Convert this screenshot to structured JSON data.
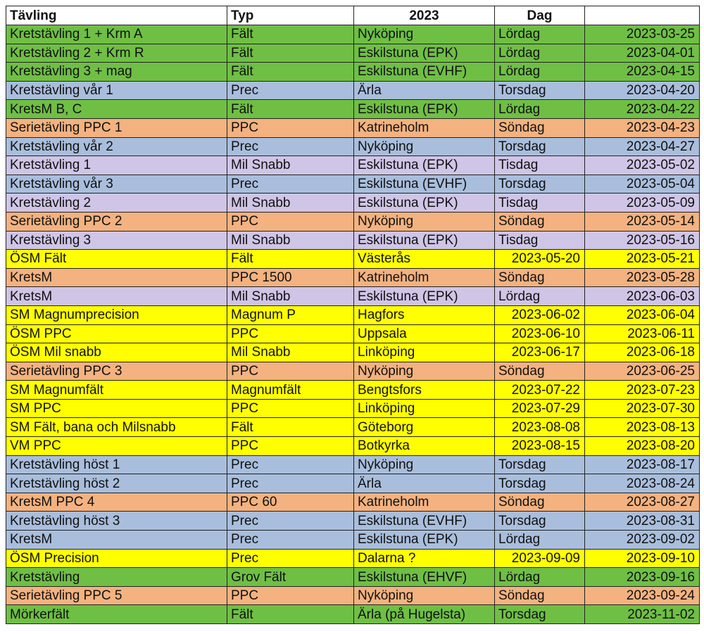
{
  "header": {
    "col1": "Tävling",
    "col2": "Typ",
    "col3": "2023",
    "col4": "Dag",
    "col5": ""
  },
  "rows": [
    {
      "tavling": "Kretstävling 1 + Krm A",
      "typ": "Fält",
      "ort": "Nyköping",
      "dag": "Lördag",
      "datum": "2023-03-25",
      "color": "green"
    },
    {
      "tavling": "Kretstävling 2 + Krm R",
      "typ": "Fält",
      "ort": "Eskilstuna (EPK)",
      "dag": "Lördag",
      "datum": "2023-04-01",
      "color": "green"
    },
    {
      "tavling": "Kretstävling 3 + mag",
      "typ": "Fält",
      "ort": "Eskilstuna (EVHF)",
      "dag": "Lördag",
      "datum": "2023-04-15",
      "color": "green"
    },
    {
      "tavling": "Kretstävling vår 1",
      "typ": "Prec",
      "ort": "Ärla",
      "dag": "Torsdag",
      "datum": "2023-04-20",
      "color": "blue"
    },
    {
      "tavling": "KretsM B, C",
      "typ": "Fält",
      "ort": "Eskilstuna (EPK)",
      "dag": "Lördag",
      "datum": "2023-04-22",
      "color": "green"
    },
    {
      "tavling": "Serietävling PPC 1",
      "typ": "PPC",
      "ort": "Katrineholm",
      "dag": "Söndag",
      "datum": "2023-04-23",
      "color": "orange"
    },
    {
      "tavling": "Kretstävling vår 2",
      "typ": "Prec",
      "ort": "Nyköping",
      "dag": "Torsdag",
      "datum": "2023-04-27",
      "color": "blue"
    },
    {
      "tavling": "Kretstävling 1",
      "typ": "Mil Snabb",
      "ort": "Eskilstuna (EPK)",
      "dag": "Tisdag",
      "datum": "2023-05-02",
      "color": "lavender"
    },
    {
      "tavling": "Kretstävling vår 3",
      "typ": "Prec",
      "ort": "Eskilstuna (EVHF)",
      "dag": "Torsdag",
      "datum": "2023-05-04",
      "color": "blue"
    },
    {
      "tavling": "Kretstävling 2",
      "typ": "Mil Snabb",
      "ort": "Eskilstuna (EPK)",
      "dag": "Tisdag",
      "datum": "2023-05-09",
      "color": "lavender"
    },
    {
      "tavling": "Serietävling PPC 2",
      "typ": "PPC",
      "ort": "Nyköping",
      "dag": "Söndag",
      "datum": "2023-05-14",
      "color": "orange"
    },
    {
      "tavling": "Kretstävling 3",
      "typ": "Mil Snabb",
      "ort": "Eskilstuna (EPK)",
      "dag": "Tisdag",
      "datum": "2023-05-16",
      "color": "lavender"
    },
    {
      "tavling": "ÖSM Fält",
      "typ": "Fält",
      "ort": "Västerås",
      "dag": "2023-05-20",
      "datum": "2023-05-21",
      "color": "yellow"
    },
    {
      "tavling": "KretsM",
      "typ": "PPC 1500",
      "ort": "Katrineholm",
      "dag": "Söndag",
      "datum": "2023-05-28",
      "color": "orange"
    },
    {
      "tavling": "KretsM",
      "typ": "Mil Snabb",
      "ort": "Eskilstuna (EPK)",
      "dag": "Lördag",
      "datum": "2023-06-03",
      "color": "lavender"
    },
    {
      "tavling": "SM Magnumprecision",
      "typ": "Magnum P",
      "ort": "Hagfors",
      "dag": "2023-06-02",
      "datum": "2023-06-04",
      "color": "yellow"
    },
    {
      "tavling": "ÖSM PPC",
      "typ": "PPC",
      "ort": "Uppsala",
      "dag": "2023-06-10",
      "datum": "2023-06-11",
      "color": "yellow"
    },
    {
      "tavling": "ÖSM Mil snabb",
      "typ": "Mil Snabb",
      "ort": "Linköping",
      "dag": "2023-06-17",
      "datum": "2023-06-18",
      "color": "yellow"
    },
    {
      "tavling": "Serietävling PPC 3",
      "typ": "PPC",
      "ort": "Nyköping",
      "dag": "Söndag",
      "datum": "2023-06-25",
      "color": "orange"
    },
    {
      "tavling": "SM Magnumfält",
      "typ": "Magnumfält",
      "ort": "Bengtsfors",
      "dag": "2023-07-22",
      "datum": "2023-07-23",
      "color": "yellow"
    },
    {
      "tavling": "SM PPC",
      "typ": "PPC",
      "ort": "Linköping",
      "dag": "2023-07-29",
      "datum": "2023-07-30",
      "color": "yellow"
    },
    {
      "tavling": "SM Fält, bana och Milsnabb",
      "typ": "Fält",
      "ort": "Göteborg",
      "dag": "2023-08-08",
      "datum": "2023-08-13",
      "color": "yellow"
    },
    {
      "tavling": "VM PPC",
      "typ": "PPC",
      "ort": "Botkyrka",
      "dag": "2023-08-15",
      "datum": "2023-08-20",
      "color": "yellow"
    },
    {
      "tavling": "Kretstävling höst 1",
      "typ": "Prec",
      "ort": "Nyköping",
      "dag": "Torsdag",
      "datum": "2023-08-17",
      "color": "blue"
    },
    {
      "tavling": "Kretstävling höst 2",
      "typ": "Prec",
      "ort": "Ärla",
      "dag": "Torsdag",
      "datum": "2023-08-24",
      "color": "blue"
    },
    {
      "tavling": "KretsM PPC 4",
      "typ": "PPC 60",
      "ort": "Katrineholm",
      "dag": "Söndag",
      "datum": "2023-08-27",
      "color": "orange"
    },
    {
      "tavling": "Kretstävling höst 3",
      "typ": "Prec",
      "ort": "Eskilstuna (EVHF)",
      "dag": "Torsdag",
      "datum": "2023-08-31",
      "color": "blue"
    },
    {
      "tavling": "KretsM",
      "typ": "Prec",
      "ort": "Eskilstuna (EPK)",
      "dag": "Lördag",
      "datum": "2023-09-02",
      "color": "blue"
    },
    {
      "tavling": "ÖSM Precision",
      "typ": "Prec",
      "ort": "Dalarna ?",
      "dag": "2023-09-09",
      "datum": "2023-09-10",
      "color": "yellow"
    },
    {
      "tavling": "Kretstävling",
      "typ": "Grov Fält",
      "ort": "Eskilstuna (EHVF)",
      "dag": "Lördag",
      "datum": "2023-09-16",
      "color": "green"
    },
    {
      "tavling": "Serietävling PPC 5",
      "typ": "PPC",
      "ort": "Nyköping",
      "dag": "Söndag",
      "datum": "2023-09-24",
      "color": "orange"
    },
    {
      "tavling": "Mörkerfält",
      "typ": "Fält",
      "ort": "Ärla (på Hugelsta)",
      "dag": "Torsdag",
      "datum": "2023-11-02",
      "color": "green"
    }
  ]
}
